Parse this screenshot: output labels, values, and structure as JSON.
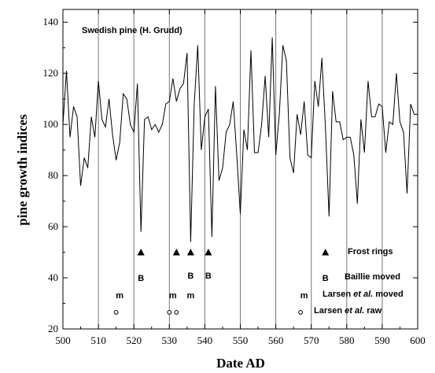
{
  "chart_data": {
    "type": "line",
    "title": "Swedish pine (H. Grudd)",
    "xlabel": "Date AD",
    "ylabel": "pine growth indices",
    "xlim": [
      500,
      600
    ],
    "ylim": [
      20,
      145
    ],
    "xticks": [
      500,
      510,
      520,
      530,
      540,
      550,
      560,
      570,
      580,
      590,
      600
    ],
    "yticks": [
      20,
      40,
      60,
      80,
      100,
      120,
      140
    ],
    "vertical_gridlines_at": [
      510,
      520,
      530,
      540,
      550,
      560,
      570,
      580,
      590
    ],
    "legend_position": "lower-right",
    "series": [
      {
        "values": [
          [
            500,
            100
          ],
          [
            501,
            121
          ],
          [
            502,
            95
          ],
          [
            503,
            107
          ],
          [
            504,
            103
          ],
          [
            505,
            76
          ],
          [
            506,
            87
          ],
          [
            507,
            83
          ],
          [
            508,
            103
          ],
          [
            509,
            95
          ],
          [
            510,
            117
          ],
          [
            511,
            102
          ],
          [
            512,
            99
          ],
          [
            513,
            110
          ],
          [
            514,
            96
          ],
          [
            515,
            86
          ],
          [
            516,
            93
          ],
          [
            517,
            112
          ],
          [
            518,
            110
          ],
          [
            519,
            100
          ],
          [
            520,
            97
          ],
          [
            521,
            116
          ],
          [
            522,
            58
          ],
          [
            523,
            102
          ],
          [
            524,
            103
          ],
          [
            525,
            98
          ],
          [
            526,
            100
          ],
          [
            527,
            97
          ],
          [
            528,
            100
          ],
          [
            529,
            108
          ],
          [
            530,
            109
          ],
          [
            531,
            118
          ],
          [
            532,
            109
          ],
          [
            533,
            114
          ],
          [
            534,
            116
          ],
          [
            535,
            128
          ],
          [
            536,
            54
          ],
          [
            537,
            108
          ],
          [
            538,
            131
          ],
          [
            539,
            90
          ],
          [
            540,
            103
          ],
          [
            541,
            106
          ],
          [
            542,
            56
          ],
          [
            543,
            115
          ],
          [
            544,
            78
          ],
          [
            545,
            83
          ],
          [
            546,
            97
          ],
          [
            547,
            100
          ],
          [
            548,
            109
          ],
          [
            549,
            88
          ],
          [
            550,
            65
          ],
          [
            551,
            98
          ],
          [
            552,
            90
          ],
          [
            553,
            129
          ],
          [
            554,
            89
          ],
          [
            555,
            89
          ],
          [
            556,
            100
          ],
          [
            557,
            119
          ],
          [
            558,
            95
          ],
          [
            559,
            134
          ],
          [
            560,
            88
          ],
          [
            561,
            104
          ],
          [
            562,
            131
          ],
          [
            563,
            125
          ],
          [
            564,
            87
          ],
          [
            565,
            81
          ],
          [
            566,
            104
          ],
          [
            567,
            96
          ],
          [
            568,
            109
          ],
          [
            569,
            88
          ],
          [
            570,
            87
          ],
          [
            571,
            117
          ],
          [
            572,
            107
          ],
          [
            573,
            126
          ],
          [
            574,
            99
          ],
          [
            575,
            64
          ],
          [
            576,
            113
          ],
          [
            577,
            101
          ],
          [
            578,
            101
          ],
          [
            579,
            94
          ],
          [
            580,
            95
          ],
          [
            581,
            95
          ],
          [
            582,
            88
          ],
          [
            583,
            69
          ],
          [
            584,
            102
          ],
          [
            585,
            89
          ],
          [
            586,
            117
          ],
          [
            587,
            103
          ],
          [
            588,
            103
          ],
          [
            589,
            108
          ],
          [
            590,
            107
          ],
          [
            591,
            89
          ],
          [
            592,
            101
          ],
          [
            593,
            100
          ],
          [
            594,
            120
          ],
          [
            595,
            101
          ],
          [
            596,
            97
          ],
          [
            597,
            73
          ],
          [
            598,
            108
          ],
          [
            599,
            104
          ],
          [
            600,
            104
          ]
        ]
      }
    ],
    "markers": {
      "frost_rings": {
        "symbol": "▲",
        "label": "Frost rings",
        "x": [
          522,
          532,
          536,
          541,
          574
        ],
        "y": 50
      },
      "baillie_moved": {
        "symbol": "B",
        "label": "Baillie moved",
        "x": [
          522,
          536,
          541,
          574
        ],
        "y": [
          40,
          41,
          41,
          40
        ]
      },
      "larsen_moved": {
        "symbol": "m",
        "label_before": "Larsen ",
        "label_italic": "et al.",
        "label_after": " moved",
        "x": [
          516,
          531,
          536,
          568
        ],
        "y": 33
      },
      "larsen_raw": {
        "symbol": "o",
        "label_before": "Larsen ",
        "label_italic": "et al.",
        "label_after": " raw",
        "x": [
          515,
          530,
          532,
          567
        ],
        "y": 26.5
      }
    }
  }
}
